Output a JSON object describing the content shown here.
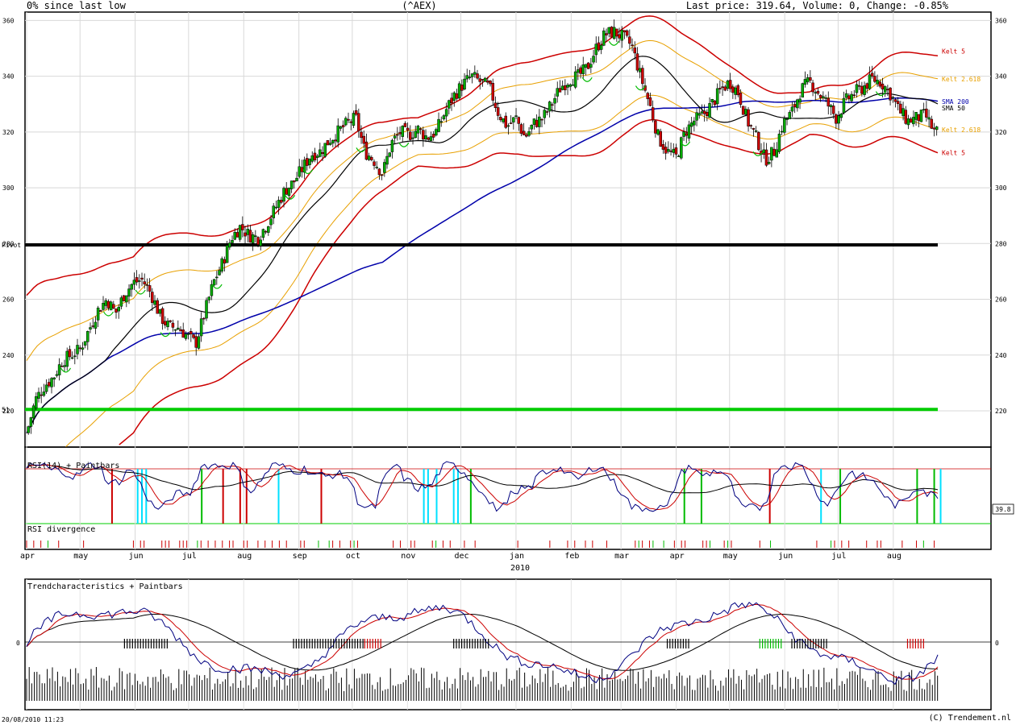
{
  "header": {
    "left": "0% since last low",
    "center": "(^AEX)",
    "right": "Last price: 319.64, Volume: 0, Change: -0.85%"
  },
  "footer": {
    "left": "20/08/2010 11:23",
    "right": "(C) Trendement.nl"
  },
  "chart_data": [
    {
      "type": "candlestick",
      "name": "price-panel",
      "ylim": [
        207,
        363
      ],
      "yticks": [
        220,
        240,
        260,
        280,
        300,
        320,
        340,
        360
      ],
      "ytick_labels": [
        "220",
        "240",
        "260",
        "280",
        "300",
        "320",
        "340",
        "360"
      ],
      "grid": true,
      "x_range_days": [
        0,
        512
      ],
      "price_series": {
        "days": [
          0,
          5,
          10,
          15,
          20,
          25,
          30,
          35,
          40,
          45,
          50,
          55,
          60,
          65,
          70,
          75,
          80,
          85,
          90,
          95,
          100,
          105,
          110,
          115,
          120,
          125,
          130,
          135,
          140,
          145,
          150,
          155,
          160,
          165,
          170,
          175,
          180,
          185,
          190,
          195,
          200,
          205,
          210,
          215,
          220,
          225,
          230,
          235,
          240,
          245,
          250,
          255,
          260,
          265,
          270,
          275,
          280,
          285,
          290,
          295,
          300,
          305,
          310,
          315,
          320,
          325,
          330,
          335,
          340,
          345,
          350,
          355,
          360,
          365,
          370,
          375,
          380,
          385,
          390,
          395,
          400,
          405,
          410,
          415,
          420,
          425,
          430,
          435,
          440,
          445,
          450,
          455,
          460,
          465,
          470,
          475,
          480,
          485,
          490,
          495,
          500,
          505,
          510
        ],
        "close": [
          212,
          224,
          229,
          232,
          238,
          240,
          242,
          249,
          256,
          260,
          255,
          262,
          266,
          267,
          262,
          254,
          250,
          250,
          247,
          244,
          255,
          266,
          273,
          282,
          286,
          283,
          282,
          287,
          293,
          299,
          302,
          307,
          312,
          313,
          317,
          320,
          323,
          325,
          313,
          310,
          305,
          316,
          320,
          319,
          321,
          318,
          320,
          327,
          333,
          337,
          340,
          338,
          336,
          327,
          322,
          325,
          318,
          323,
          325,
          330,
          336,
          339,
          340,
          343,
          350,
          355,
          356,
          354,
          351,
          340,
          330,
          318,
          313,
          311,
          320,
          324,
          326,
          330,
          335,
          338,
          334,
          324,
          318,
          310,
          313,
          323,
          327,
          335,
          338,
          334,
          330,
          325,
          331,
          334,
          336,
          339,
          338,
          334,
          328,
          324,
          325,
          326,
          320
        ]
      },
      "kelt_channels": [
        {
          "name": "Kelt 5",
          "color": "#cc0000",
          "label": "Kelt 5"
        },
        {
          "name": "Kelt 2.618",
          "color": "#e8a000",
          "label": "Kelt 2.618"
        }
      ],
      "moving_averages": [
        {
          "name": "SMA 50",
          "color": "#000000",
          "label": "SMA 50"
        },
        {
          "name": "SMA 200",
          "color": "#0000aa",
          "label": "SMA 200"
        }
      ],
      "horizontal_lines": [
        {
          "value": 279.5,
          "color": "#000000",
          "label": "Pivot"
        },
        {
          "value": 220.5,
          "color": "#00cc00",
          "label": "51"
        }
      ]
    },
    {
      "type": "line",
      "name": "rsi-panel",
      "title": "RSI(14) + Paintbars",
      "last_value_label": "39.8",
      "ylim": [
        0,
        100
      ],
      "series": [
        {
          "name": "RSI",
          "color": "#000080"
        },
        {
          "name": "RSI signal",
          "color": "#cc0000"
        },
        {
          "name": "RSI long",
          "color": "#000000"
        }
      ]
    },
    {
      "type": "bar",
      "name": "rsi-divergence",
      "title": "RSI divergence"
    },
    {
      "type": "line",
      "name": "trend-panel",
      "title": "Trendcharacteristics + Paintbars",
      "yticks": [
        0
      ],
      "ytick_labels": [
        "0"
      ],
      "series": [
        {
          "name": "Trend",
          "color": "#000080"
        },
        {
          "name": "Trend signal",
          "color": "#cc0000"
        },
        {
          "name": "Trend long",
          "color": "#000000"
        }
      ]
    }
  ],
  "x_axis": {
    "year_label": "2010",
    "months": [
      {
        "label": "apr",
        "day": 0
      },
      {
        "label": "may",
        "day": 30
      },
      {
        "label": "jun",
        "day": 61
      },
      {
        "label": "jul",
        "day": 91
      },
      {
        "label": "aug",
        "day": 122
      },
      {
        "label": "sep",
        "day": 153
      },
      {
        "label": "oct",
        "day": 183
      },
      {
        "label": "nov",
        "day": 214
      },
      {
        "label": "dec",
        "day": 244
      },
      {
        "label": "jan",
        "day": 275
      },
      {
        "label": "feb",
        "day": 306
      },
      {
        "label": "mar",
        "day": 334
      },
      {
        "label": "apr",
        "day": 365
      },
      {
        "label": "may",
        "day": 395
      },
      {
        "label": "jun",
        "day": 426
      },
      {
        "label": "jul",
        "day": 456
      },
      {
        "label": "aug",
        "day": 487
      }
    ]
  },
  "colors": {
    "up_candle": "#00aa00",
    "down_candle": "#cc0000",
    "kelt5": "#cc0000",
    "kelt2618": "#e8a000",
    "sma50": "#000000",
    "sma200": "#0000aa",
    "pivot": "#000000",
    "support": "#00cc00",
    "paint_red": "#cc0000",
    "paint_cyan": "#00e0ff",
    "paint_green": "#00bb00",
    "volume": "#000000"
  }
}
